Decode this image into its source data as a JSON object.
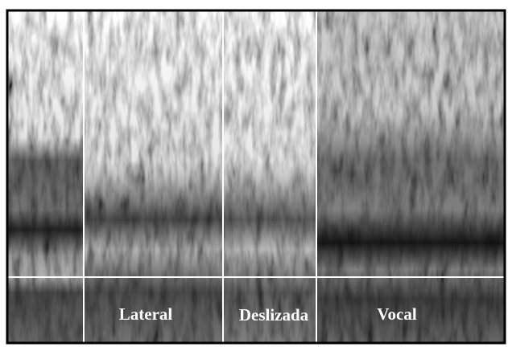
{
  "segments": {
    "labels": [
      "Lateral",
      "Deslizada",
      "Vocal"
    ]
  }
}
